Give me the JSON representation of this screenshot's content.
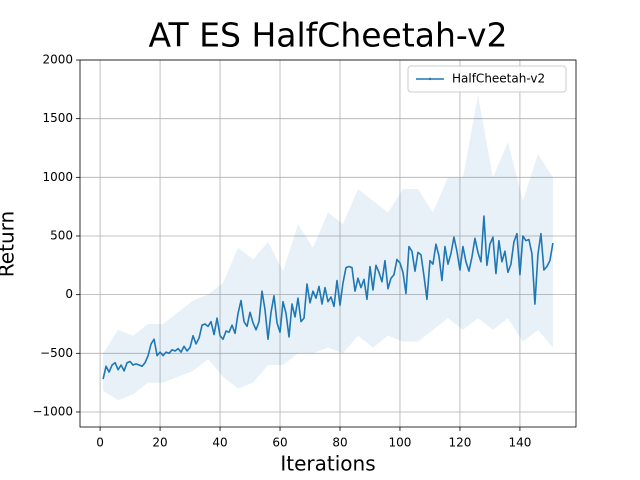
{
  "chart_data": {
    "type": "line",
    "title": "AT ES HalfCheetah-v2",
    "xlabel": "Iterations",
    "ylabel": "Return",
    "xlim": [
      -6.7,
      158.7
    ],
    "ylim": [
      -1128,
      2000
    ],
    "xticks": [
      0,
      20,
      40,
      60,
      80,
      100,
      120,
      140
    ],
    "yticks": [
      {
        "value": -1000,
        "label": "−1000"
      },
      {
        "value": -500,
        "label": "−500"
      },
      0,
      500,
      1000,
      1500,
      2000
    ],
    "grid": true,
    "legend": "upper right",
    "series": [
      {
        "name": "HalfCheetah-v2",
        "color": "#1f77b4",
        "x": [
          1,
          2,
          3,
          4,
          5,
          6,
          7,
          8,
          9,
          10,
          11,
          12,
          13,
          14,
          15,
          16,
          17,
          18,
          19,
          20,
          21,
          22,
          23,
          24,
          25,
          26,
          27,
          28,
          29,
          30,
          31,
          32,
          33,
          34,
          35,
          36,
          37,
          38,
          39,
          40,
          41,
          42,
          43,
          44,
          45,
          46,
          47,
          48,
          49,
          50,
          51,
          52,
          53,
          54,
          55,
          56,
          57,
          58,
          59,
          60,
          61,
          62,
          63,
          64,
          65,
          66,
          67,
          68,
          69,
          70,
          71,
          72,
          73,
          74,
          75,
          76,
          77,
          78,
          79,
          80,
          81,
          82,
          83,
          84,
          85,
          86,
          87,
          88,
          89,
          90,
          91,
          92,
          93,
          94,
          95,
          96,
          97,
          98,
          99,
          100,
          101,
          102,
          103,
          104,
          105,
          106,
          107,
          108,
          109,
          110,
          111,
          112,
          113,
          114,
          115,
          116,
          117,
          118,
          119,
          120,
          121,
          122,
          123,
          124,
          125,
          126,
          127,
          128,
          129,
          130,
          131,
          132,
          133,
          134,
          135,
          136,
          137,
          138,
          139,
          140,
          141,
          142,
          143,
          144,
          145,
          146,
          147,
          148,
          149,
          150,
          151
        ],
        "values": [
          -720,
          -610,
          -660,
          -600,
          -580,
          -640,
          -600,
          -650,
          -580,
          -570,
          -600,
          -590,
          -600,
          -610,
          -580,
          -520,
          -420,
          -380,
          -520,
          -490,
          -520,
          -490,
          -500,
          -470,
          -480,
          -460,
          -490,
          -440,
          -480,
          -450,
          -350,
          -420,
          -370,
          -260,
          -250,
          -270,
          -230,
          -340,
          -200,
          -350,
          -380,
          -310,
          -320,
          -260,
          -330,
          -160,
          -50,
          -230,
          -270,
          -150,
          -240,
          -300,
          -230,
          30,
          -130,
          -380,
          -150,
          -10,
          -240,
          -320,
          -60,
          -160,
          -360,
          -80,
          -190,
          -30,
          -230,
          -200,
          90,
          -70,
          30,
          -30,
          70,
          -80,
          60,
          -60,
          -20,
          -100,
          120,
          -90,
          100,
          230,
          240,
          230,
          30,
          140,
          60,
          130,
          -40,
          240,
          40,
          250,
          190,
          110,
          290,
          50,
          140,
          170,
          300,
          270,
          190,
          10,
          410,
          370,
          200,
          360,
          340,
          160,
          -40,
          290,
          260,
          430,
          330,
          120,
          410,
          260,
          350,
          490,
          370,
          210,
          410,
          280,
          200,
          320,
          480,
          360,
          280,
          670,
          250,
          430,
          490,
          180,
          460,
          280,
          370,
          190,
          260,
          450,
          520,
          170,
          500,
          460,
          470,
          350,
          -80,
          340,
          520,
          210,
          240,
          290,
          440
        ],
        "band": {
          "color": "#1f77b4",
          "x": [
            1,
            6,
            11,
            16,
            21,
            26,
            31,
            36,
            41,
            46,
            51,
            56,
            61,
            66,
            71,
            76,
            81,
            86,
            91,
            96,
            101,
            106,
            111,
            116,
            121,
            126,
            131,
            136,
            141,
            146,
            151
          ],
          "upper": [
            -500,
            -300,
            -350,
            -250,
            -250,
            -150,
            -50,
            0,
            100,
            400,
            300,
            450,
            200,
            600,
            400,
            700,
            600,
            900,
            800,
            700,
            900,
            900,
            700,
            1000,
            1000,
            1700,
            1000,
            1300,
            800,
            1200,
            1000
          ],
          "lower": [
            -820,
            -900,
            -850,
            -750,
            -750,
            -700,
            -650,
            -550,
            -700,
            -800,
            -750,
            -600,
            -600,
            -500,
            -500,
            -450,
            -500,
            -350,
            -450,
            -350,
            -400,
            -400,
            -300,
            -200,
            -300,
            -200,
            -300,
            -200,
            -400,
            -300,
            -450
          ]
        }
      }
    ]
  }
}
